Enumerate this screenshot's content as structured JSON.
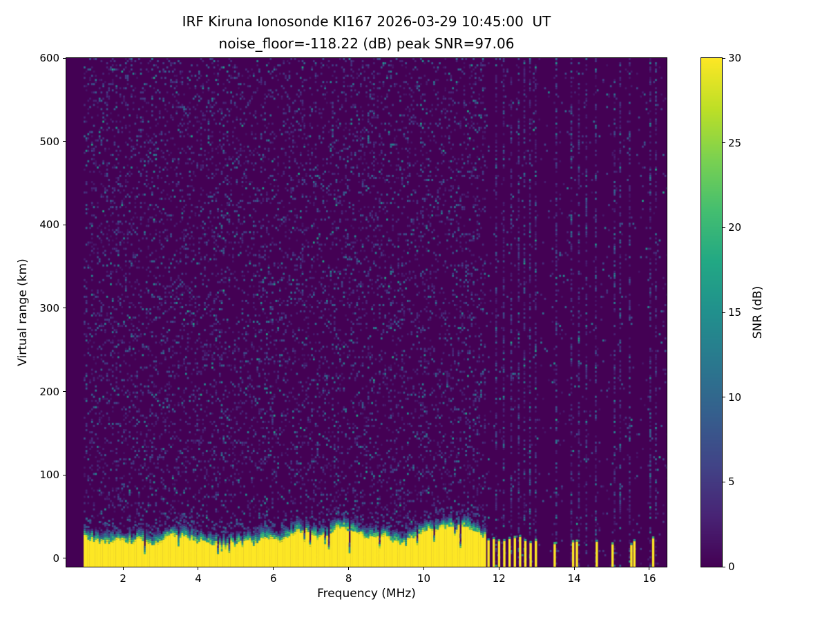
{
  "chart_data": {
    "type": "heatmap",
    "title": "IRF Kiruna Ionosonde KI167 2026-03-29 10:45:00  UT",
    "subtitle": "noise_floor=-118.22 (dB) peak SNR=97.06",
    "station": "IRF Kiruna Ionosonde KI167",
    "timestamp_ut": "2026-03-29 10:45:00",
    "noise_floor_db": -118.22,
    "peak_snr_db": 97.06,
    "xlabel": "Frequency (MHz)",
    "ylabel": "Virtual range (km)",
    "xlim": [
      0.49,
      16.46
    ],
    "ylim": [
      -10,
      600
    ],
    "xticks": [
      2,
      4,
      6,
      8,
      10,
      12,
      14,
      16
    ],
    "yticks": [
      0,
      100,
      200,
      300,
      400,
      500,
      600
    ],
    "grid": false,
    "colorbar": {
      "label": "SNR (dB)",
      "min": 0,
      "max": 30,
      "ticks": [
        0,
        5,
        10,
        15,
        20,
        25,
        30
      ],
      "colormap": "viridis"
    },
    "data_start_mhz": 0.95,
    "ground_echo": {
      "description": "strong continuous echo band at low virtual range",
      "freq_start": 0.95,
      "freq_end": 11.62,
      "top_km_min": 16,
      "top_km_max": 38,
      "snr_db": 30
    },
    "echo_stripes_mhz": [
      11.72,
      11.86,
      12.0,
      12.14,
      12.28,
      12.42,
      12.56,
      12.7,
      12.84,
      12.98,
      13.48,
      13.97,
      14.07,
      14.6,
      15.02,
      15.52,
      15.6,
      16.1
    ],
    "rfi_line_freqs_mhz": [
      11.9,
      12.1,
      12.3,
      12.5,
      12.65,
      12.8,
      12.95,
      13.5,
      13.9,
      14.1,
      14.3,
      14.55,
      15.05,
      15.2,
      15.45,
      16.0,
      16.15
    ],
    "background": {
      "base_snr_db": 0,
      "speckle_density_below_11_6mhz": 0.16,
      "speckle_density_above_11_6mhz": 0.03,
      "speckle_snr_range_db": [
        1,
        17
      ]
    }
  }
}
